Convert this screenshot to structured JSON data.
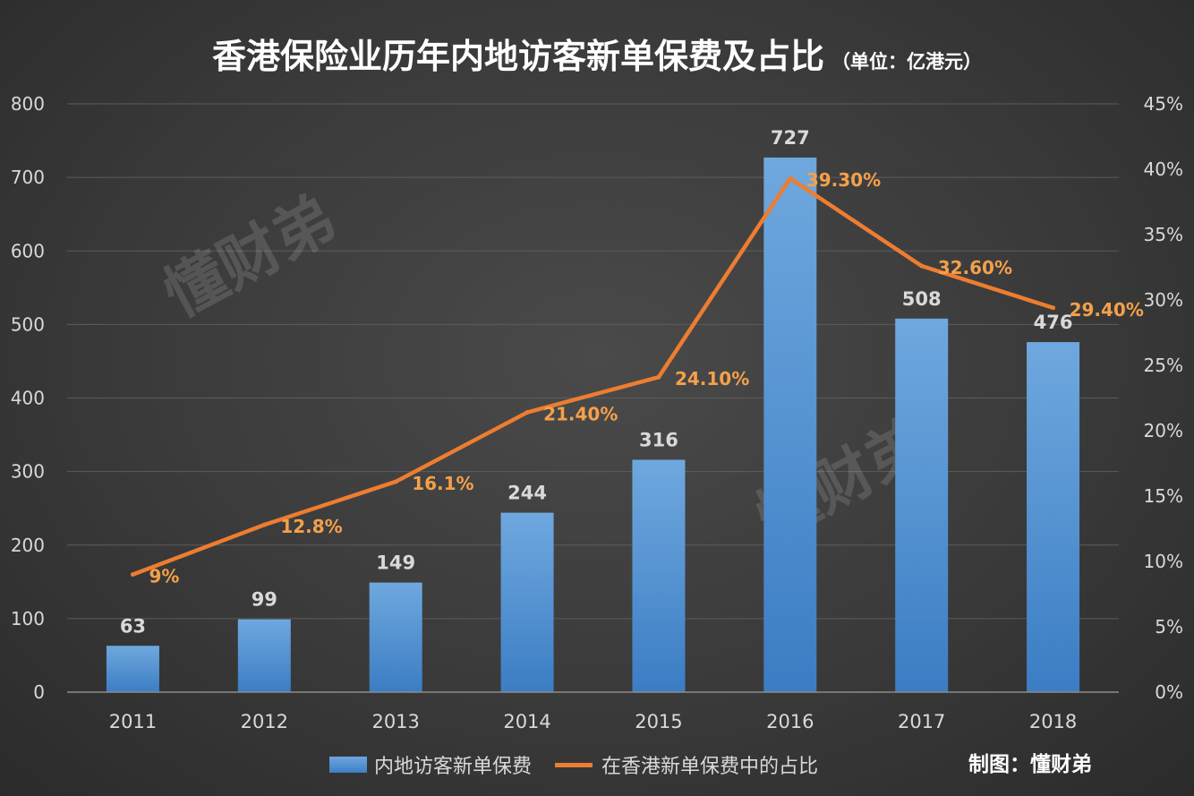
{
  "title": "香港保险业历年内地访客新单保费及占比",
  "subtitle": "（单位：亿港元）",
  "watermark": "懂财弟",
  "credit": "制图：懂财弟",
  "chart_data": {
    "type": "bar+line",
    "title": "香港保险业历年内地访客新单保费及占比",
    "subtitle": "（单位：亿港元）",
    "categories": [
      "2011",
      "2012",
      "2013",
      "2014",
      "2015",
      "2016",
      "2017",
      "2018"
    ],
    "series": [
      {
        "name": "内地访客新单保费",
        "type": "bar",
        "axis": "left",
        "values": [
          63,
          99,
          149,
          244,
          316,
          727,
          508,
          476
        ],
        "labels": [
          "63",
          "99",
          "149",
          "244",
          "316",
          "727",
          "508",
          "476"
        ],
        "color": "#5b9bd5"
      },
      {
        "name": "在香港新单保费中的占比",
        "type": "line",
        "axis": "right",
        "values": [
          9,
          12.8,
          16.1,
          21.4,
          24.1,
          39.3,
          32.6,
          29.4
        ],
        "labels": [
          "9%",
          "12.8%",
          "16.1%",
          "21.40%",
          "24.10%",
          "39.30%",
          "32.60%",
          "29.40%"
        ],
        "color": "#ed7d31"
      }
    ],
    "y_left": {
      "min": 0,
      "max": 800,
      "ticks": [
        "0",
        "100",
        "200",
        "300",
        "400",
        "500",
        "600",
        "700",
        "800"
      ]
    },
    "y_right": {
      "min": 0,
      "max": 45,
      "ticks": [
        "0%",
        "5%",
        "10%",
        "15%",
        "20%",
        "25%",
        "30%",
        "35%",
        "40%",
        "45%"
      ]
    },
    "grid": true,
    "legend_position": "bottom"
  }
}
